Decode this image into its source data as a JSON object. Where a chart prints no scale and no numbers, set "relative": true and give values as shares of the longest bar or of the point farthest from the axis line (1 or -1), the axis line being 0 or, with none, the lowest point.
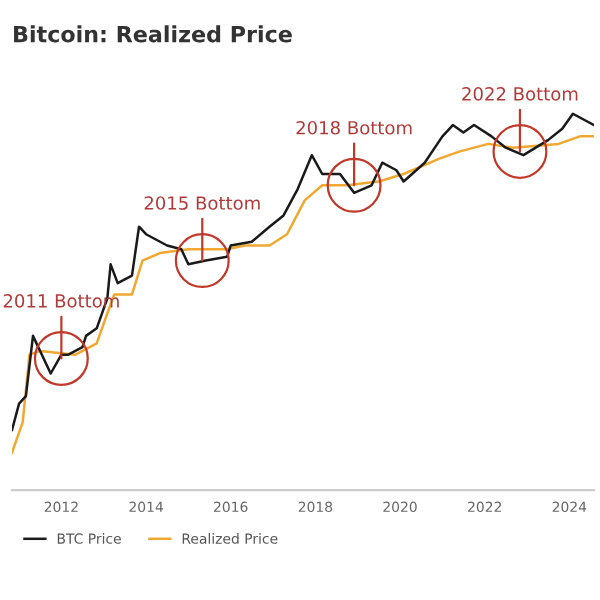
{
  "chart_data": {
    "type": "line",
    "title": "Bitcoin: Realized Price",
    "relative": true,
    "xlim": [
      "2010-11",
      "2024-08"
    ],
    "xticks": [
      {
        "value": "2012",
        "label": "2012"
      },
      {
        "value": "2014",
        "label": "2014"
      },
      {
        "value": "2016",
        "label": "2016"
      },
      {
        "value": "2018",
        "label": "2018"
      },
      {
        "value": "2020",
        "label": "2020"
      },
      {
        "value": "2022",
        "label": "2022"
      },
      {
        "value": "2024",
        "label": "2024"
      }
    ],
    "series": [
      {
        "name": "BTC Price",
        "color": "#1a1a1a",
        "x": [
          "2010-11",
          "2011-01",
          "2011-03",
          "2011-05",
          "2011-10",
          "2012-01",
          "2012-03",
          "2012-07",
          "2012-08",
          "2012-11",
          "2013-02",
          "2013-03",
          "2013-05",
          "2013-09",
          "2013-11",
          "2014-01",
          "2014-07",
          "2014-11",
          "2015-01",
          "2015-06",
          "2015-12",
          "2016-01",
          "2016-07",
          "2016-12",
          "2017-04",
          "2017-08",
          "2017-12",
          "2018-03",
          "2018-08",
          "2018-12",
          "2019-05",
          "2019-08",
          "2019-12",
          "2020-02",
          "2020-08",
          "2021-01",
          "2021-04",
          "2021-07",
          "2021-10",
          "2022-03",
          "2022-07",
          "2022-12",
          "2023-07",
          "2023-11",
          "2024-02",
          "2024-08"
        ],
        "values": [
          0.16,
          0.23,
          0.25,
          0.41,
          0.31,
          0.36,
          0.36,
          0.38,
          0.41,
          0.43,
          0.51,
          0.6,
          0.55,
          0.57,
          0.7,
          0.68,
          0.65,
          0.64,
          0.6,
          0.61,
          0.62,
          0.65,
          0.66,
          0.7,
          0.73,
          0.8,
          0.89,
          0.84,
          0.84,
          0.79,
          0.81,
          0.87,
          0.85,
          0.82,
          0.87,
          0.94,
          0.97,
          0.95,
          0.97,
          0.94,
          0.91,
          0.89,
          0.93,
          0.96,
          1.0,
          0.97
        ]
      },
      {
        "name": "Realized Price",
        "color": "#f0a830",
        "x": [
          "2010-11",
          "2011-02",
          "2011-04",
          "2011-07",
          "2012-05",
          "2012-11",
          "2013-02",
          "2013-04",
          "2013-09",
          "2013-12",
          "2014-05",
          "2015-01",
          "2015-12",
          "2016-05",
          "2016-12",
          "2017-05",
          "2017-10",
          "2018-03",
          "2018-10",
          "2019-07",
          "2020-02",
          "2020-12",
          "2021-06",
          "2022-02",
          "2022-09",
          "2023-10",
          "2024-04",
          "2024-08"
        ],
        "values": [
          0.1,
          0.18,
          0.36,
          0.37,
          0.36,
          0.39,
          0.47,
          0.52,
          0.52,
          0.61,
          0.63,
          0.64,
          0.64,
          0.65,
          0.65,
          0.68,
          0.77,
          0.81,
          0.81,
          0.82,
          0.84,
          0.88,
          0.9,
          0.92,
          0.91,
          0.92,
          0.94,
          0.94
        ]
      }
    ],
    "annotations": [
      {
        "text": "2011 Bottom",
        "x": "2012-01",
        "y": 0.35
      },
      {
        "text": "2015 Bottom",
        "x": "2015-05",
        "y": 0.61
      },
      {
        "text": "2018 Bottom",
        "x": "2018-12",
        "y": 0.81
      },
      {
        "text": "2022 Bottom",
        "x": "2022-11",
        "y": 0.9
      }
    ],
    "legend": "bottom",
    "line_style": "solid",
    "marker": "none"
  }
}
